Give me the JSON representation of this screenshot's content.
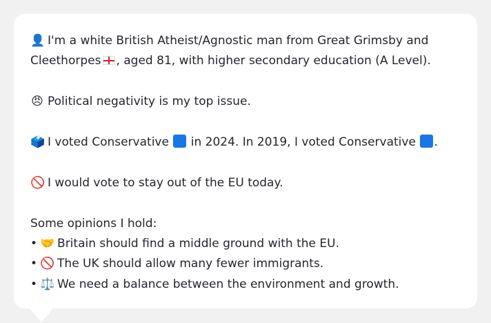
{
  "profile": {
    "intro_line1": "I'm a white British Atheist/Agnostic man from Great Grimsby and",
    "intro_line2": ", aged 81, with higher secondary education (A Level).",
    "intro_place_tail": "Cleethorpes",
    "person_icon": "👤",
    "flag_icon": "england-flag-icon",
    "top_issue": "Political negativity is my top issue.",
    "top_issue_icon": "😠",
    "vote_icon": "🗳️",
    "vote_part1": "I voted Conservative",
    "vote_part2": "in 2024. In 2019, I voted Conservative",
    "vote_part3": ".",
    "party_color": "#1976e6",
    "eu_icon": "🚫",
    "eu_stance": "I would vote to stay out of the EU today.",
    "opinions_heading": "Some opinions I hold:",
    "opinions": [
      {
        "bullet": "•",
        "icon": "🤝",
        "text": "Britain should find a middle ground with the EU."
      },
      {
        "bullet": "•",
        "icon": "🚫",
        "text": "The UK should allow many fewer immigrants."
      },
      {
        "bullet": "•",
        "icon": "⚖️",
        "text": "We need a balance between the environment and growth."
      }
    ]
  }
}
